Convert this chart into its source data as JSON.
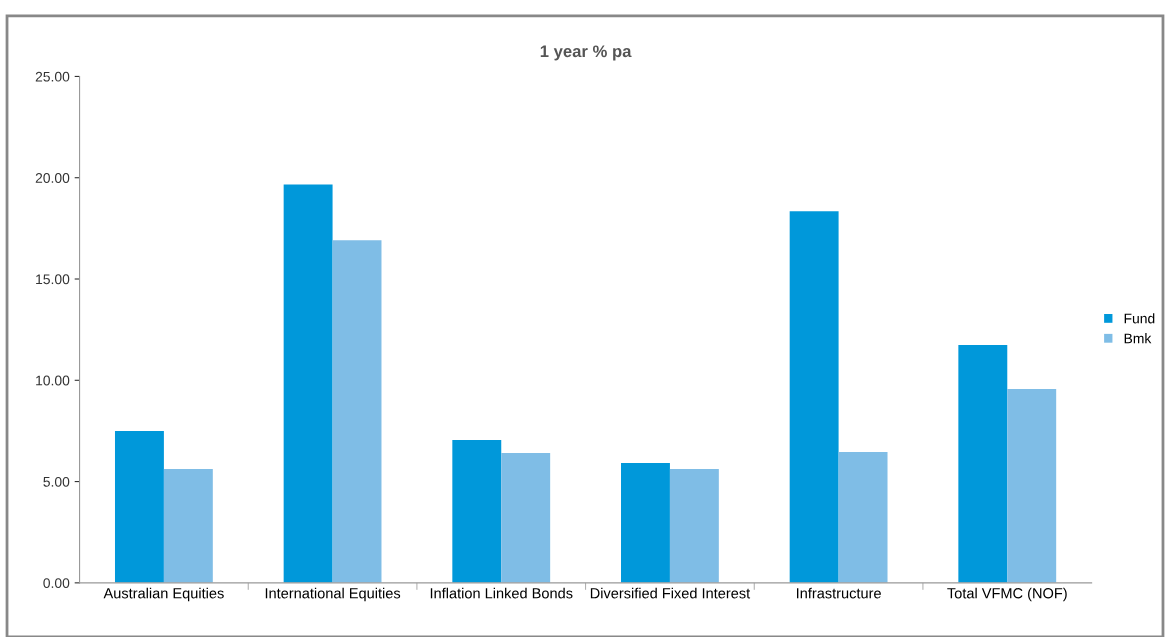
{
  "chart_data": {
    "type": "bar",
    "title": "1 year % pa",
    "categories": [
      "Australian Equities",
      "International Equities",
      "Inflation Linked Bonds",
      "Diversified Fixed Interest",
      "Infrastructure",
      "Total VFMC (NOF)"
    ],
    "series": [
      {
        "name": "Fund",
        "color": "#0098da",
        "values": [
          7.5,
          19.67,
          7.05,
          5.92,
          18.34,
          11.74
        ]
      },
      {
        "name": "Bmk",
        "color": "#7fbde6",
        "values": [
          5.62,
          16.91,
          6.41,
          5.62,
          6.46,
          9.57
        ]
      }
    ],
    "ylim": [
      0,
      25
    ],
    "yticks": [
      {
        "value": 0,
        "label": "0.00"
      },
      {
        "value": 5,
        "label": "5.00"
      },
      {
        "value": 10,
        "label": "10.00"
      },
      {
        "value": 15,
        "label": "15.00"
      },
      {
        "value": 20,
        "label": "20.00"
      },
      {
        "value": 25,
        "label": "25.00"
      }
    ],
    "grid": false,
    "legend": "right"
  }
}
